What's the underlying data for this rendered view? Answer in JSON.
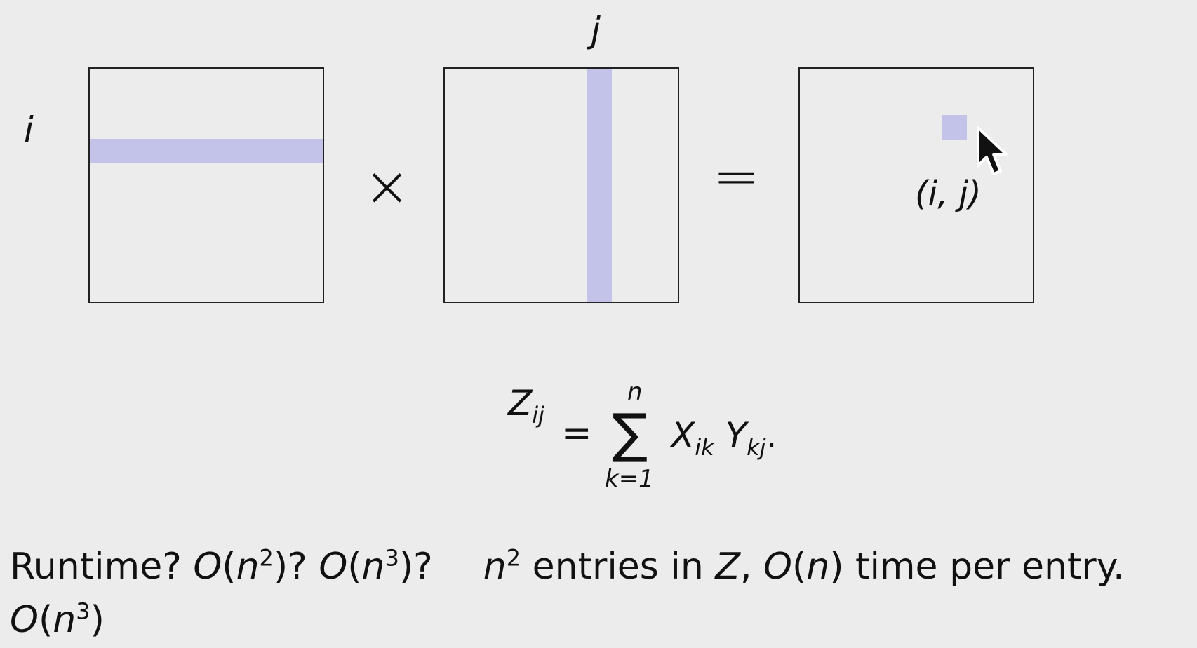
{
  "labels": {
    "row_index": "i",
    "col_index": "j",
    "cell_label": "(i, j)"
  },
  "operators": {
    "times": "×",
    "equals": "="
  },
  "formula": {
    "lhs": "Z",
    "lhs_sub": "ij",
    "equals": "=",
    "sigma": "∑",
    "upper": "n",
    "lower": "k=1",
    "term1": "X",
    "term1_sub": "ik",
    "term2": "Y",
    "term2_sub": "kj",
    "end": "."
  },
  "text": {
    "line1_a": "Runtime? ",
    "line1_b": "O",
    "line1_c": "(",
    "line1_d": "n",
    "line1_e": "2",
    "line1_f": ")? ",
    "line1_g": "O",
    "line1_h": "(",
    "line1_i": "n",
    "line1_j": "3",
    "line1_k": ")?",
    "line1_l": "n",
    "line1_m": "2",
    "line1_n": " entries in ",
    "line1_o": "Z",
    "line1_p": ", ",
    "line1_q": "O",
    "line1_r": "(",
    "line1_s": "n",
    "line1_t": ") time per entry.",
    "line2_a": "O",
    "line2_b": "(",
    "line2_c": "n",
    "line2_d": "3",
    "line2_e": ")"
  },
  "colors": {
    "highlight": "#c3c3ea",
    "background": "#ececec",
    "stroke": "#222222"
  }
}
